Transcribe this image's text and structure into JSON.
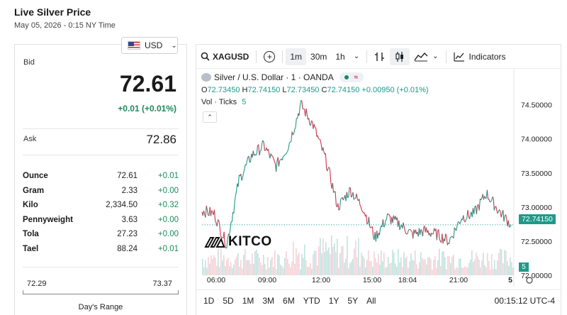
{
  "header": {
    "title": "Live Silver Price",
    "timestamp": "May 05, 2026 - 0:15 NY Time"
  },
  "currency": {
    "selected": "USD"
  },
  "quote": {
    "bid_label": "Bid",
    "bid": "72.61",
    "change": "+0.01 (+0.01%)",
    "ask_label": "Ask",
    "ask": "72.86"
  },
  "units": [
    {
      "name": "Ounce",
      "value": "72.61",
      "change": "+0.01"
    },
    {
      "name": "Gram",
      "value": "2.33",
      "change": "+0.00"
    },
    {
      "name": "Kilo",
      "value": "2,334.50",
      "change": "+0.32"
    },
    {
      "name": "Pennyweight",
      "value": "3.63",
      "change": "+0.00"
    },
    {
      "name": "Tola",
      "value": "27.23",
      "change": "+0.00"
    },
    {
      "name": "Tael",
      "value": "88.24",
      "change": "+0.01"
    }
  ],
  "days_range": {
    "low": "72.29",
    "high": "73.37",
    "label": "Day's Range"
  },
  "toolbar": {
    "symbol": "XAGUSD",
    "intervals": [
      "1m",
      "30m",
      "1h"
    ],
    "active_interval": "1m",
    "indicators_label": "Indicators"
  },
  "legend": {
    "title": "Silver / U.S. Dollar · 1 · OANDA",
    "open_label": "O",
    "open": "72.73450",
    "high_label": "H",
    "high": "72.74150",
    "low_label": "L",
    "low": "72.73450",
    "close_label": "C",
    "close": "72.74150",
    "change": "+0.00950 (+0.01%)",
    "volume_label": "Vol · Ticks",
    "volume": "5"
  },
  "price_axis": [
    "74.50000",
    "74.00000",
    "73.50000",
    "73.00000",
    "72.50000",
    "72.00000"
  ],
  "last_price_tag": "72.74150",
  "volume_tag": "5",
  "time_axis": [
    "06:00",
    "09:00",
    "12:00",
    "15:00",
    "18:04",
    "21:00",
    "5"
  ],
  "brand": "KITCO",
  "ranges": [
    "1D",
    "5D",
    "1M",
    "3M",
    "6M",
    "YTD",
    "1Y",
    "5Y",
    "All"
  ],
  "clock": "00:15:12 UTC-4",
  "colors": {
    "up": "#1a8a5c",
    "teal": "#1f9a8a",
    "down": "#d0344c"
  },
  "chart_data": {
    "type": "line",
    "title": "",
    "ylim": [
      72.0,
      74.6
    ],
    "x": [
      "05:00",
      "06:00",
      "06:30",
      "07:30",
      "08:30",
      "09:00",
      "09:30",
      "10:00",
      "10:30",
      "11:00",
      "11:30",
      "12:00",
      "13:00",
      "14:00",
      "15:00",
      "16:00",
      "17:00",
      "18:00",
      "19:00",
      "20:00",
      "21:00",
      "21:30",
      "22:00",
      "23:00",
      "23:30",
      "00:15"
    ],
    "series": [
      {
        "values": [
          72.95,
          72.9,
          72.45,
          73.4,
          73.75,
          73.9,
          73.6,
          73.9,
          74.5,
          74.2,
          73.7,
          73.0,
          73.25,
          73.0,
          72.55,
          72.85,
          72.75,
          72.6,
          72.65,
          72.6,
          72.5,
          72.85,
          72.9,
          73.2,
          72.95,
          72.74
        ]
      }
    ]
  }
}
